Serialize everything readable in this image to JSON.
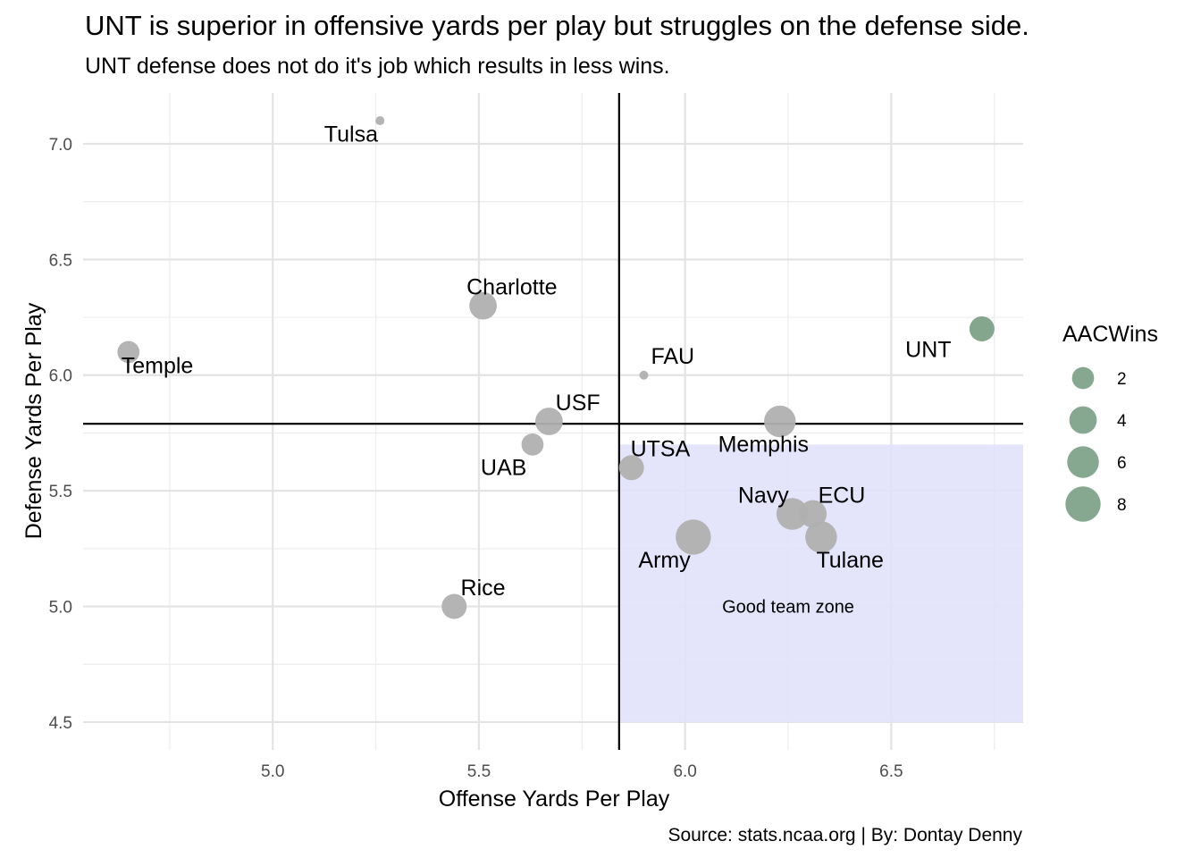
{
  "chart_data": {
    "type": "scatter",
    "title": "UNT is superior in offensive yards per play but struggles on the defense side.",
    "subtitle": "UNT defense does not do it's job which results in less wins.",
    "xlabel": "Offense Yards Per Play",
    "ylabel": "Defense Yards Per Play",
    "caption": "Source: stats.ncaa.org | By: Dontay Denny",
    "xlim": [
      4.54,
      6.82
    ],
    "ylim": [
      4.38,
      7.22
    ],
    "x_ticks": [
      "5.0",
      "5.5",
      "6.0",
      "6.5"
    ],
    "y_ticks": [
      "4.5",
      "5.0",
      "5.5",
      "6.0",
      "6.5",
      "7.0"
    ],
    "grid": true,
    "reference_lines": {
      "x": 5.84,
      "y": 5.79
    },
    "good_zone": {
      "x_range": [
        5.84,
        6.82
      ],
      "y_range": [
        4.5,
        5.7
      ],
      "label": "Good team zone",
      "label_x": 6.25,
      "label_y": 5.0,
      "color": "#e1e1fb"
    },
    "size_legend": {
      "title": "AACWins",
      "values": [
        2,
        4,
        6,
        8
      ],
      "labels": [
        "2",
        "4",
        "6",
        "8"
      ],
      "color": "#5e8a6b"
    },
    "colors": {
      "other": "#b0b0b0",
      "good_zone": "#a0a0c0",
      "unt": "#6f9679"
    },
    "points": [
      {
        "team": "Tulsa",
        "x": 5.26,
        "y": 7.1,
        "wins": 0,
        "group": "other",
        "label_anchor": "middle",
        "label_dx": -0.07,
        "label_dy": -0.06
      },
      {
        "team": "Charlotte",
        "x": 5.51,
        "y": 6.3,
        "wins": 4,
        "group": "other",
        "label_anchor": "middle",
        "label_dx": 0.07,
        "label_dy": 0.08
      },
      {
        "team": "Temple",
        "x": 4.65,
        "y": 6.1,
        "wins": 2,
        "group": "other",
        "label_anchor": "middle",
        "label_dx": 0.07,
        "label_dy": -0.06
      },
      {
        "team": "FAU",
        "x": 5.9,
        "y": 6.0,
        "wins": 0,
        "group": "other",
        "label_anchor": "middle",
        "label_dx": 0.07,
        "label_dy": 0.08
      },
      {
        "team": "USF",
        "x": 5.67,
        "y": 5.8,
        "wins": 4,
        "group": "other",
        "label_anchor": "middle",
        "label_dx": 0.07,
        "label_dy": 0.08
      },
      {
        "team": "UAB",
        "x": 5.63,
        "y": 5.7,
        "wins": 2,
        "group": "other",
        "label_anchor": "middle",
        "label_dx": -0.07,
        "label_dy": -0.1
      },
      {
        "team": "Rice",
        "x": 5.44,
        "y": 5.0,
        "wins": 3,
        "group": "other",
        "label_anchor": "middle",
        "label_dx": 0.07,
        "label_dy": 0.08
      },
      {
        "team": "Memphis",
        "x": 6.23,
        "y": 5.8,
        "wins": 6,
        "group": "other",
        "label_anchor": "middle",
        "label_dx": -0.04,
        "label_dy": -0.1
      },
      {
        "team": "UTSA",
        "x": 5.87,
        "y": 5.6,
        "wins": 3,
        "group": "zone",
        "label_anchor": "middle",
        "label_dx": 0.07,
        "label_dy": 0.08
      },
      {
        "team": "Army",
        "x": 6.02,
        "y": 5.3,
        "wins": 8,
        "group": "zone",
        "label_anchor": "middle",
        "label_dx": -0.07,
        "label_dy": -0.1
      },
      {
        "team": "Navy",
        "x": 6.26,
        "y": 5.4,
        "wins": 6,
        "group": "zone",
        "label_anchor": "middle",
        "label_dx": -0.07,
        "label_dy": 0.08
      },
      {
        "team": "ECU",
        "x": 6.31,
        "y": 5.4,
        "wins": 4,
        "group": "zone",
        "label_anchor": "middle",
        "label_dx": 0.07,
        "label_dy": 0.08
      },
      {
        "team": "Tulane",
        "x": 6.33,
        "y": 5.3,
        "wins": 6,
        "group": "zone",
        "label_anchor": "middle",
        "label_dx": 0.07,
        "label_dy": -0.1
      },
      {
        "team": "UNT",
        "x": 6.72,
        "y": 6.2,
        "wins": 3,
        "group": "unt",
        "label_anchor": "middle",
        "label_dx": -0.13,
        "label_dy": -0.09
      }
    ]
  }
}
